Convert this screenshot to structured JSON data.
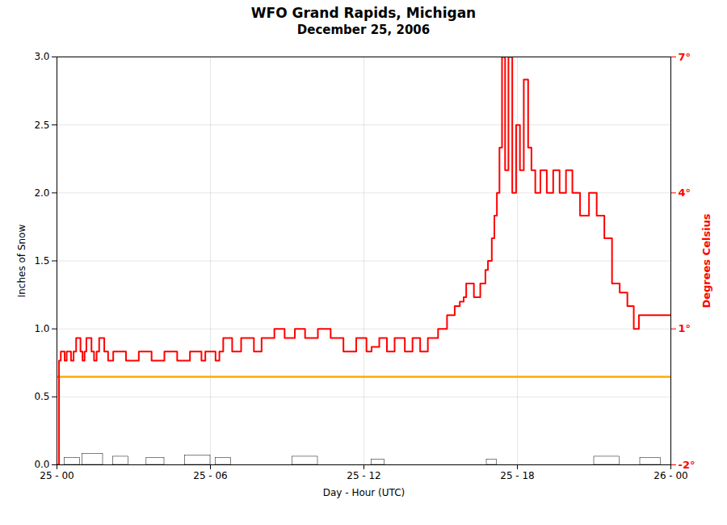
{
  "chart_data": {
    "type": "line",
    "title": "WFO Grand Rapids, Michigan",
    "subtitle": "December 25, 2006",
    "x_label": "Day - Hour (UTC)",
    "y_label": "Inches of Snow",
    "y2_label": "Degrees Celsius",
    "xlim": [
      0,
      24
    ],
    "xticks": [
      {
        "value": 0,
        "label": "25 - 00"
      },
      {
        "value": 6,
        "label": "25 - 06"
      },
      {
        "value": 12,
        "label": "25 - 12"
      },
      {
        "value": 18,
        "label": "25 - 18"
      },
      {
        "value": 24,
        "label": "26 - 00"
      }
    ],
    "ylim": [
      0.0,
      3.0
    ],
    "yticks": [
      {
        "value": 0.0,
        "label": "0.0"
      },
      0.5,
      {
        "value": 1.0,
        "label": "1.0"
      },
      1.5,
      {
        "value": 2.0,
        "label": "2.0"
      },
      2.5,
      {
        "value": 3.0,
        "label": "3.0"
      }
    ],
    "y2lim": [
      -2.0,
      7.0
    ],
    "y2ticks": [
      {
        "value": -2,
        "label": "-2°"
      },
      {
        "value": 1,
        "label": "1°"
      },
      {
        "value": 4,
        "label": "4°"
      },
      {
        "value": 7,
        "label": "7°"
      }
    ],
    "grid": true,
    "reference_lines": [
      {
        "y": 0.647,
        "color": "#ffaa00"
      }
    ],
    "series": [
      {
        "type": "area",
        "color": "#ffffff",
        "x_start": [
          0.3,
          1.0,
          2.2,
          3.5,
          5.0,
          6.2,
          9.2,
          12.3,
          16.8,
          21.0,
          22.8
        ],
        "x_end": [
          0.9,
          1.8,
          2.8,
          4.2,
          6.0,
          6.8,
          10.2,
          12.8,
          17.2,
          22.0,
          23.6
        ],
        "values": [
          0.05,
          0.08,
          0.06,
          0.05,
          0.07,
          0.05,
          0.06,
          0.04,
          0.04,
          0.06,
          0.05
        ]
      },
      {
        "type": "line",
        "axis": "y2",
        "line_style": "step",
        "color": "#ff0000",
        "x": [
          0.0,
          0.08,
          0.15,
          0.25,
          0.3,
          0.38,
          0.45,
          0.55,
          0.65,
          0.75,
          0.85,
          0.92,
          1.0,
          1.08,
          1.15,
          1.25,
          1.35,
          1.45,
          1.55,
          1.65,
          1.75,
          1.85,
          2.0,
          2.2,
          2.5,
          2.7,
          3.0,
          3.2,
          3.5,
          3.7,
          4.0,
          4.2,
          4.5,
          4.7,
          5.0,
          5.2,
          5.5,
          5.65,
          5.8,
          6.0,
          6.2,
          6.35,
          6.5,
          6.7,
          6.85,
          7.0,
          7.2,
          7.5,
          7.7,
          8.0,
          8.3,
          8.5,
          8.7,
          8.9,
          9.1,
          9.3,
          9.5,
          9.7,
          10.0,
          10.2,
          10.5,
          10.7,
          11.0,
          11.2,
          11.5,
          11.7,
          12.0,
          12.1,
          12.2,
          12.3,
          12.5,
          12.6,
          12.8,
          12.9,
          13.1,
          13.2,
          13.5,
          13.6,
          13.8,
          13.9,
          14.1,
          14.2,
          14.3,
          14.5,
          14.7,
          14.9,
          15.1,
          15.25,
          15.4,
          15.55,
          15.65,
          15.75,
          15.9,
          16.0,
          16.15,
          16.3,
          16.45,
          16.55,
          16.65,
          16.75,
          16.85,
          17.0,
          17.1,
          17.2,
          17.3,
          17.4,
          17.48,
          17.52,
          17.58,
          17.65,
          17.72,
          17.8,
          17.9,
          17.95,
          18.05,
          18.1,
          18.2,
          18.25,
          18.35,
          18.42,
          18.5,
          18.55,
          18.65,
          18.7,
          18.85,
          18.9,
          19.1,
          19.15,
          19.3,
          19.4,
          19.55,
          19.65,
          19.8,
          19.9,
          20.05,
          20.15,
          20.35,
          20.45,
          20.7,
          20.8,
          21.0,
          21.1,
          21.3,
          21.4,
          21.6,
          21.7,
          21.9,
          22.0,
          22.2,
          22.3,
          22.45,
          22.55,
          22.65,
          22.75,
          23.0,
          24.0
        ],
        "values": [
          -2.0,
          0.3,
          0.5,
          0.5,
          0.3,
          0.5,
          0.5,
          0.3,
          0.5,
          0.8,
          0.8,
          0.5,
          0.3,
          0.5,
          0.8,
          0.8,
          0.5,
          0.3,
          0.5,
          0.8,
          0.8,
          0.5,
          0.3,
          0.5,
          0.5,
          0.3,
          0.3,
          0.5,
          0.5,
          0.3,
          0.3,
          0.5,
          0.5,
          0.3,
          0.3,
          0.5,
          0.5,
          0.3,
          0.5,
          0.5,
          0.3,
          0.5,
          0.8,
          0.8,
          0.5,
          0.5,
          0.8,
          0.8,
          0.5,
          0.8,
          0.8,
          1.0,
          1.0,
          0.8,
          0.8,
          1.0,
          1.0,
          0.8,
          0.8,
          1.0,
          1.0,
          0.8,
          0.8,
          0.5,
          0.5,
          0.8,
          0.8,
          0.5,
          0.5,
          0.6,
          0.6,
          0.8,
          0.8,
          0.5,
          0.5,
          0.8,
          0.8,
          0.5,
          0.5,
          0.8,
          0.8,
          0.5,
          0.5,
          0.8,
          0.8,
          1.0,
          1.0,
          1.3,
          1.3,
          1.5,
          1.5,
          1.6,
          1.7,
          2.0,
          2.0,
          1.7,
          1.7,
          2.0,
          2.0,
          2.3,
          2.5,
          3.0,
          3.5,
          4.0,
          5.0,
          7.0,
          7.0,
          4.5,
          4.5,
          7.0,
          7.0,
          4.0,
          4.0,
          5.5,
          5.5,
          4.5,
          4.5,
          6.5,
          6.5,
          5.0,
          5.0,
          4.5,
          4.5,
          4.0,
          4.0,
          4.5,
          4.5,
          4.0,
          4.0,
          4.5,
          4.5,
          4.0,
          4.0,
          4.5,
          4.5,
          4.0,
          4.0,
          3.5,
          3.5,
          4.0,
          4.0,
          3.5,
          3.5,
          3.0,
          3.0,
          2.0,
          2.0,
          1.8,
          1.8,
          1.5,
          1.5,
          1.0,
          1.0,
          1.3,
          1.3,
          1.3
        ]
      }
    ]
  }
}
